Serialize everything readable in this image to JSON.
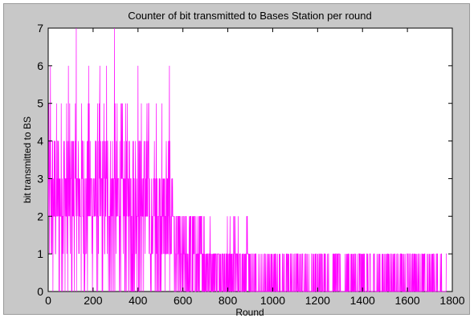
{
  "chart_data": {
    "type": "line",
    "title": "Counter of bit transmitted to Bases Station per round",
    "xlabel": "Round",
    "ylabel": "bit transmitted to BS",
    "xlim": [
      0,
      1800
    ],
    "ylim": [
      0,
      7
    ],
    "xticks": [
      "0",
      "200",
      "400",
      "600",
      "800",
      "1000",
      "1200",
      "1400",
      "1600",
      "1800"
    ],
    "yticks": [
      "0",
      "1",
      "2",
      "3",
      "4",
      "5",
      "6",
      "7"
    ],
    "grid": false,
    "legend": "none",
    "series": [
      {
        "color": "#ff00ff",
        "description_ranges": [
          {
            "x_start": 0,
            "x_end": 560,
            "low": 0,
            "high": 5,
            "dense_mid": [
              2,
              3
            ]
          },
          {
            "x_start": 560,
            "x_end": 900,
            "low": 0,
            "high": 2
          },
          {
            "x_start": 900,
            "x_end": 1775,
            "low": 0,
            "high": 1
          }
        ],
        "peaks": [
          {
            "x": 125,
            "y": 7
          },
          {
            "x": 295,
            "y": 7
          },
          {
            "x": 10,
            "y": 6
          },
          {
            "x": 90,
            "y": 6
          },
          {
            "x": 180,
            "y": 6
          },
          {
            "x": 230,
            "y": 6
          },
          {
            "x": 260,
            "y": 6
          },
          {
            "x": 400,
            "y": 6
          },
          {
            "x": 540,
            "y": 6
          }
        ],
        "x_end": 1775
      }
    ]
  },
  "colors": {
    "line": "#ff00ff",
    "frame_bg": "#c8c8c8",
    "plot_bg": "#ffffff"
  }
}
